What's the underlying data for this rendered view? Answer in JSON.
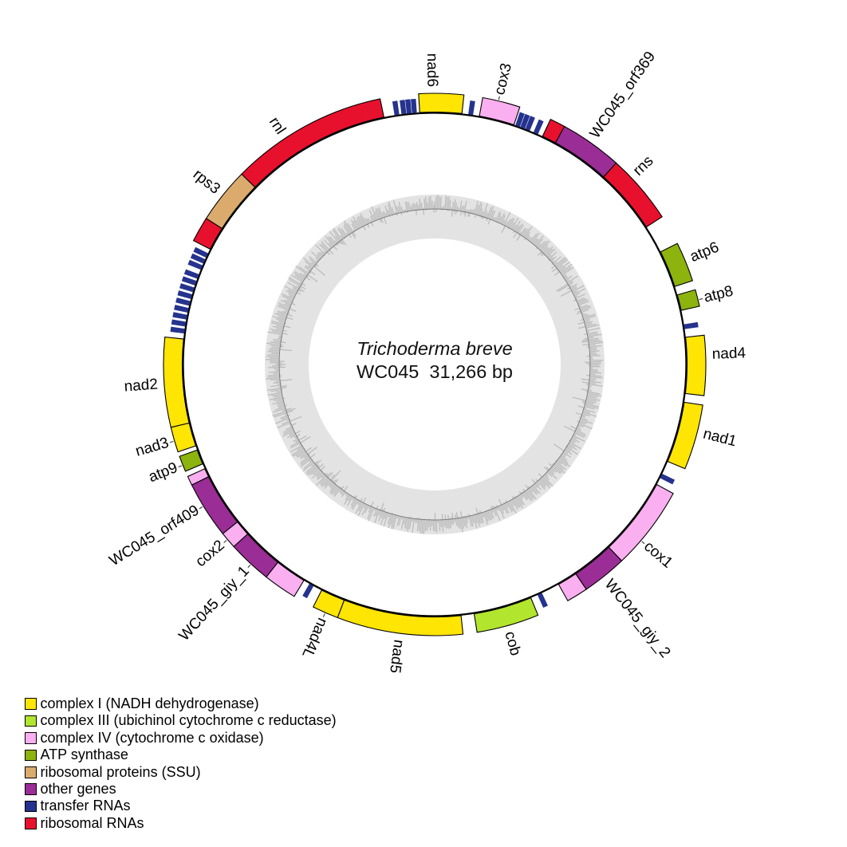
{
  "center": {
    "organism": "Trichoderma breve",
    "accession_size": "WC045  31,266 bp"
  },
  "colors": {
    "complex1": "#FFE504",
    "complex3": "#B2E52E",
    "complex4": "#F9AFF0",
    "atp": "#8CB30E",
    "rps": "#DBAB6E",
    "other": "#9B2D96",
    "trna": "#25338E",
    "rrna": "#E8112D",
    "outline": "#000000",
    "gc_band": "#e3e3e3",
    "gc_bar": "#bcbcbc",
    "gc_line": "#787878"
  },
  "chart_data": {
    "type": "circular-genome-map",
    "organism": "Trichoderma breve",
    "accession": "WC045",
    "genome_size_bp": 31266,
    "genome_size_label": "31,266 bp",
    "angle_convention": "degrees clockwise from 12 o'clock",
    "features": [
      {
        "name": "rnl",
        "category": "rrna",
        "arcs": [
          [
            297.2,
            302.6
          ],
          [
            314.6,
            348.4
          ]
        ],
        "label": {
          "text": "rnl",
          "deg": 326.5,
          "leader": false
        }
      },
      {
        "name": "rps3",
        "category": "rps",
        "arcs": [
          [
            302.6,
            314.6
          ]
        ],
        "label": {
          "text": "rps3",
          "deg": 308.6,
          "leader": false
        }
      },
      {
        "name": "nad6",
        "category": "complex1",
        "arcs": [
          [
            356.6,
            366.2
          ]
        ],
        "label": {
          "text": "nad6",
          "deg": 359.4,
          "leader": false
        }
      },
      {
        "name": "cox3",
        "category": "complex4",
        "arcs": [
          [
            10.2,
            18.3
          ]
        ],
        "label": {
          "text": "cox3",
          "deg": 13.6,
          "leader": true
        }
      },
      {
        "name": "rns",
        "category": "rrna",
        "arcs": [
          [
            25.3,
            28.6
          ],
          [
            42.0,
            57.0
          ]
        ],
        "label": {
          "text": "rns",
          "deg": 46.5,
          "leader": false
        }
      },
      {
        "name": "WC045_orf369",
        "category": "other",
        "arcs": [
          [
            28.6,
            42.0
          ]
        ],
        "label": {
          "text": "WC045_orf369",
          "deg": 35.0,
          "leader": false
        }
      },
      {
        "name": "atp6",
        "category": "atp",
        "arcs": [
          [
            63.5,
            72.0
          ]
        ],
        "label": {
          "text": "atp6",
          "deg": 67.5,
          "leader": false
        }
      },
      {
        "name": "atp8",
        "category": "atp",
        "arcs": [
          [
            74.0,
            77.6
          ]
        ],
        "label": {
          "text": "atp8",
          "deg": 76.2,
          "leader": true
        }
      },
      {
        "name": "nad4",
        "category": "complex1",
        "arcs": [
          [
            83.8,
            96.6
          ]
        ],
        "label": {
          "text": "nad4",
          "deg": 88.0,
          "leader": false
        }
      },
      {
        "name": "nad1",
        "category": "complex1",
        "arcs": [
          [
            98.6,
            112.6
          ]
        ],
        "label": {
          "text": "nad1",
          "deg": 104.5,
          "leader": false
        }
      },
      {
        "name": "cox1",
        "category": "complex4",
        "arcs": [
          [
            118.4,
            136.4
          ],
          [
            146.0,
            150.6
          ]
        ],
        "label": {
          "text": "cox1",
          "deg": 130.5,
          "leader": true
        }
      },
      {
        "name": "WC045_giy_2",
        "category": "other",
        "arcs": [
          [
            136.4,
            146.0
          ]
        ],
        "label": {
          "text": "WC045_giy_2",
          "deg": 141.5,
          "leader": false
        }
      },
      {
        "name": "cob",
        "category": "complex3",
        "arcs": [
          [
            157.6,
            171.0
          ]
        ],
        "label": {
          "text": "cob",
          "deg": 164.5,
          "leader": false
        }
      },
      {
        "name": "nad5",
        "category": "complex1",
        "arcs": [
          [
            174.0,
            201.0
          ]
        ],
        "label": {
          "text": "nad5",
          "deg": 187.5,
          "leader": false
        }
      },
      {
        "name": "nad4L",
        "category": "complex1",
        "arcs": [
          [
            201.0,
            206.6
          ]
        ],
        "label": {
          "text": "nad4L",
          "deg": 203.8,
          "leader": true
        }
      },
      {
        "name": "cox2",
        "category": "complex4",
        "arcs": [
          [
            211.2,
            218.4
          ],
          [
            227.8,
            231.4
          ],
          [
            243.6,
            245.6
          ]
        ],
        "label": {
          "text": "cox2",
          "deg": 229.8,
          "leader": true
        }
      },
      {
        "name": "WC045_giy_1",
        "category": "other",
        "arcs": [
          [
            218.4,
            227.8
          ]
        ],
        "label": {
          "text": "WC045_giy_1",
          "deg": 222.6,
          "leader": true
        }
      },
      {
        "name": "WC045_orf409",
        "category": "other",
        "arcs": [
          [
            231.4,
            243.6
          ]
        ],
        "label": {
          "text": "WC045_orf409",
          "deg": 238.5,
          "leader": true
        }
      },
      {
        "name": "atp9",
        "category": "atp",
        "arcs": [
          [
            246.8,
            250.2
          ]
        ],
        "label": {
          "text": "atp9",
          "deg": 248.2,
          "leader": true
        }
      },
      {
        "name": "nad3",
        "category": "complex1",
        "arcs": [
          [
            251.2,
            256.6
          ]
        ],
        "label": {
          "text": "nad3",
          "deg": 253.6,
          "leader": true
        }
      },
      {
        "name": "nad2",
        "category": "complex1",
        "arcs": [
          [
            256.6,
            275.8
          ]
        ],
        "label": {
          "text": "nad2",
          "deg": 265.8,
          "leader": false
        }
      }
    ],
    "trna_ticks_deg": [
      8.2,
      19.2,
      20.4,
      21.6,
      23.6,
      81.4,
      116.2,
      155.4,
      209.2,
      277.6,
      279.2,
      280.8,
      282.4,
      284.0,
      285.6,
      287.2,
      288.8,
      290.4,
      292.6,
      294.1,
      295.6,
      351.4,
      353.0,
      354.2,
      355.4
    ],
    "gc_ring": {
      "seed": 42,
      "step_deg": 0.55
    }
  },
  "legend": {
    "items": [
      {
        "category": "complex1",
        "label": "complex I (NADH dehydrogenase)"
      },
      {
        "category": "complex3",
        "label": "complex III (ubichinol cytochrome c reductase)"
      },
      {
        "category": "complex4",
        "label": "complex IV (cytochrome c oxidase)"
      },
      {
        "category": "atp",
        "label": "ATP synthase"
      },
      {
        "category": "rps",
        "label": "ribosomal proteins (SSU)"
      },
      {
        "category": "other",
        "label": "other genes"
      },
      {
        "category": "trna",
        "label": "transfer RNAs"
      },
      {
        "category": "rrna",
        "label": "ribosomal RNAs"
      }
    ]
  }
}
